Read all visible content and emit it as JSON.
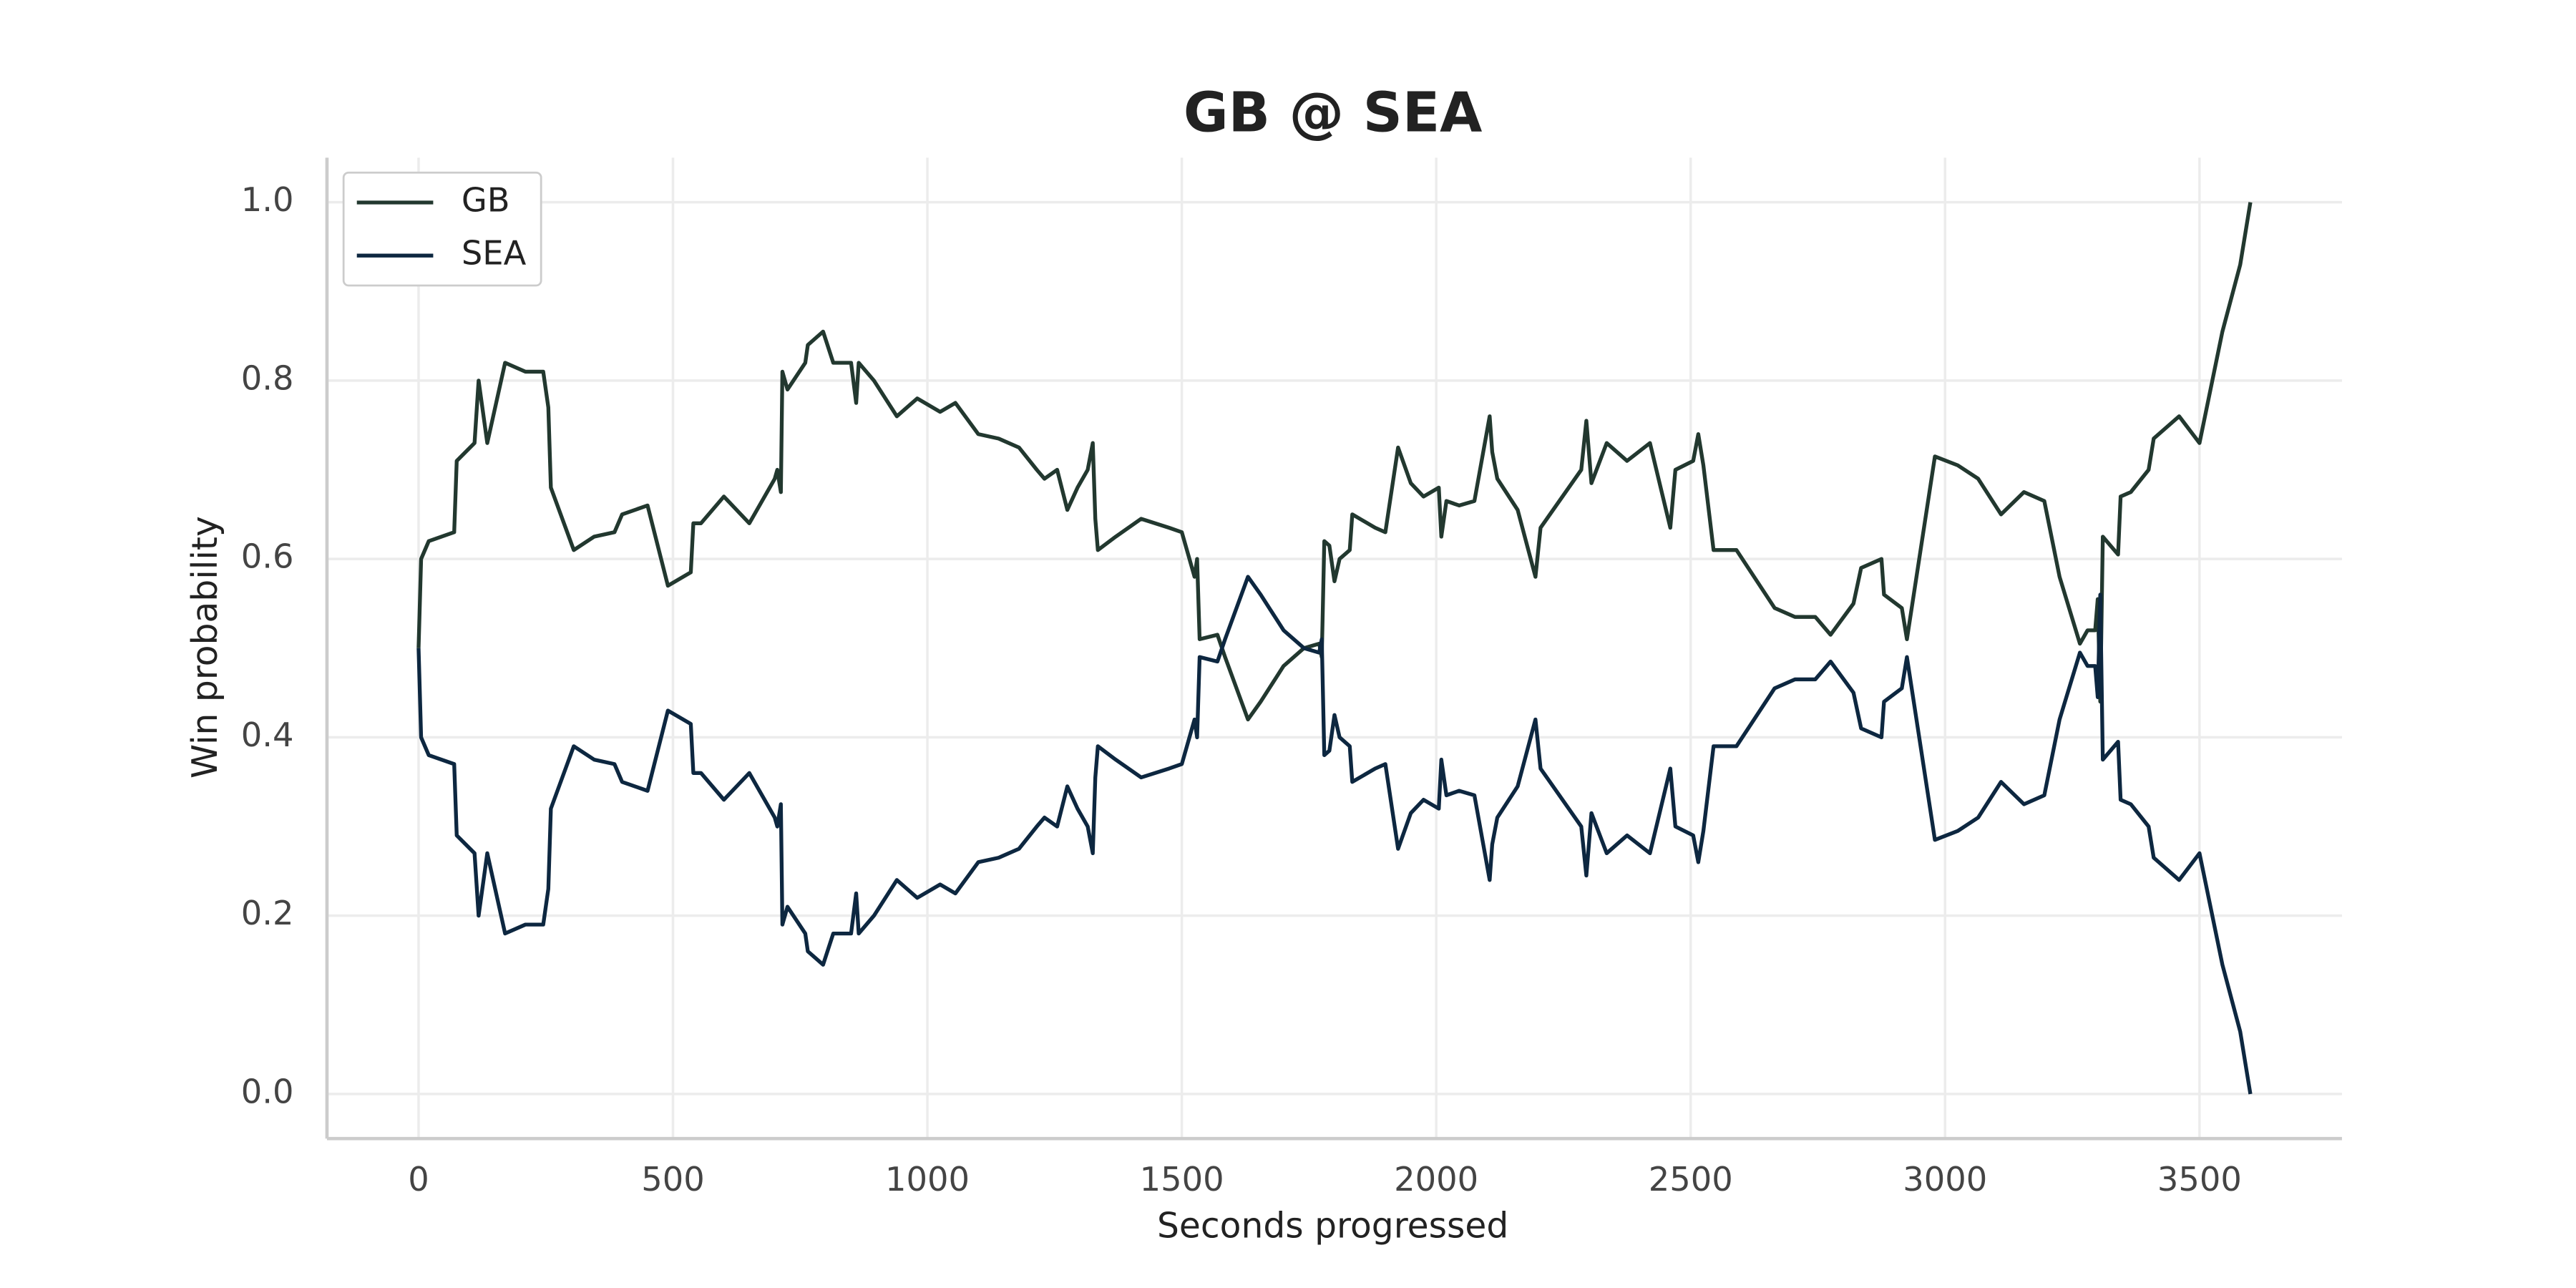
{
  "chart_data": {
    "type": "line",
    "title": "GB @ SEA",
    "x_label": "Seconds progressed",
    "y_label": "Win probability",
    "x": [
      0,
      5,
      20,
      70,
      75,
      110,
      118,
      135,
      170,
      210,
      245,
      255,
      260,
      305,
      345,
      385,
      400,
      450,
      490,
      535,
      540,
      555,
      600,
      650,
      700,
      705,
      712,
      715,
      725,
      760,
      765,
      795,
      815,
      850,
      860,
      865,
      895,
      940,
      980,
      1025,
      1055,
      1100,
      1140,
      1180,
      1215,
      1230,
      1255,
      1275,
      1295,
      1315,
      1325,
      1330,
      1335,
      1370,
      1420,
      1475,
      1500,
      1525,
      1530,
      1535,
      1570,
      1585,
      1630,
      1655,
      1700,
      1740,
      1770,
      1775,
      1780,
      1790,
      1800,
      1810,
      1830,
      1835,
      1880,
      1900,
      1925,
      1950,
      1975,
      2005,
      2010,
      2020,
      2045,
      2075,
      2105,
      2110,
      2120,
      2160,
      2195,
      2205,
      2285,
      2295,
      2305,
      2335,
      2375,
      2420,
      2460,
      2470,
      2505,
      2515,
      2525,
      2545,
      2590,
      2665,
      2705,
      2745,
      2775,
      2820,
      2835,
      2875,
      2880,
      2915,
      2925,
      2980,
      3025,
      3065,
      3110,
      3155,
      3195,
      3225,
      3265,
      3280,
      3295,
      3300,
      3305,
      3310,
      3340,
      3345,
      3365,
      3400,
      3410,
      3460,
      3500,
      3545,
      3580,
      3600
    ],
    "series": [
      {
        "name": "GB",
        "color": "#22382f",
        "values": [
          0.5,
          0.6,
          0.62,
          0.63,
          0.71,
          0.73,
          0.8,
          0.73,
          0.82,
          0.81,
          0.81,
          0.77,
          0.68,
          0.61,
          0.625,
          0.63,
          0.65,
          0.66,
          0.57,
          0.585,
          0.64,
          0.64,
          0.67,
          0.64,
          0.69,
          0.7,
          0.675,
          0.81,
          0.79,
          0.82,
          0.84,
          0.855,
          0.82,
          0.82,
          0.775,
          0.82,
          0.8,
          0.76,
          0.78,
          0.765,
          0.775,
          0.74,
          0.735,
          0.725,
          0.7,
          0.69,
          0.7,
          0.655,
          0.68,
          0.7,
          0.73,
          0.645,
          0.61,
          0.625,
          0.645,
          0.635,
          0.63,
          0.58,
          0.6,
          0.51,
          0.515,
          0.49,
          0.42,
          0.44,
          0.48,
          0.5,
          0.505,
          0.49,
          0.62,
          0.615,
          0.575,
          0.6,
          0.61,
          0.65,
          0.635,
          0.63,
          0.725,
          0.685,
          0.67,
          0.68,
          0.625,
          0.665,
          0.66,
          0.665,
          0.76,
          0.72,
          0.69,
          0.655,
          0.58,
          0.635,
          0.7,
          0.755,
          0.685,
          0.73,
          0.71,
          0.73,
          0.635,
          0.7,
          0.71,
          0.74,
          0.705,
          0.61,
          0.61,
          0.545,
          0.535,
          0.535,
          0.515,
          0.55,
          0.59,
          0.6,
          0.56,
          0.545,
          0.51,
          0.715,
          0.705,
          0.69,
          0.65,
          0.675,
          0.665,
          0.58,
          0.505,
          0.52,
          0.52,
          0.555,
          0.44,
          0.625,
          0.605,
          0.67,
          0.675,
          0.7,
          0.735,
          0.76,
          0.73,
          0.855,
          0.93,
          1.0
        ]
      },
      {
        "name": "SEA",
        "color": "#0d2740",
        "values": [
          0.5,
          0.4,
          0.38,
          0.37,
          0.29,
          0.27,
          0.2,
          0.27,
          0.18,
          0.19,
          0.19,
          0.23,
          0.32,
          0.39,
          0.375,
          0.37,
          0.35,
          0.34,
          0.43,
          0.415,
          0.36,
          0.36,
          0.33,
          0.36,
          0.31,
          0.3,
          0.325,
          0.19,
          0.21,
          0.18,
          0.16,
          0.145,
          0.18,
          0.18,
          0.225,
          0.18,
          0.2,
          0.24,
          0.22,
          0.235,
          0.225,
          0.26,
          0.265,
          0.275,
          0.3,
          0.31,
          0.3,
          0.345,
          0.32,
          0.3,
          0.27,
          0.355,
          0.39,
          0.375,
          0.355,
          0.365,
          0.37,
          0.42,
          0.4,
          0.49,
          0.485,
          0.51,
          0.58,
          0.56,
          0.52,
          0.5,
          0.495,
          0.51,
          0.38,
          0.385,
          0.425,
          0.4,
          0.39,
          0.35,
          0.365,
          0.37,
          0.275,
          0.315,
          0.33,
          0.32,
          0.375,
          0.335,
          0.34,
          0.335,
          0.24,
          0.28,
          0.31,
          0.345,
          0.42,
          0.365,
          0.3,
          0.245,
          0.315,
          0.27,
          0.29,
          0.27,
          0.365,
          0.3,
          0.29,
          0.26,
          0.295,
          0.39,
          0.39,
          0.455,
          0.465,
          0.465,
          0.485,
          0.45,
          0.41,
          0.4,
          0.44,
          0.455,
          0.49,
          0.285,
          0.295,
          0.31,
          0.35,
          0.325,
          0.335,
          0.42,
          0.495,
          0.48,
          0.48,
          0.445,
          0.56,
          0.375,
          0.395,
          0.33,
          0.325,
          0.3,
          0.265,
          0.24,
          0.27,
          0.145,
          0.07,
          0.0
        ]
      }
    ],
    "xlim": [
      -180,
      3780
    ],
    "ylim": [
      -0.05,
      1.05
    ],
    "xticks": [
      0,
      500,
      1000,
      1500,
      2000,
      2500,
      3000,
      3500
    ],
    "yticks": [
      {
        "value": 0,
        "label": "0.0"
      },
      0.2,
      0.4,
      0.6,
      0.8,
      {
        "value": 1,
        "label": "1.0"
      }
    ],
    "grid": true,
    "legend": "upper left"
  }
}
